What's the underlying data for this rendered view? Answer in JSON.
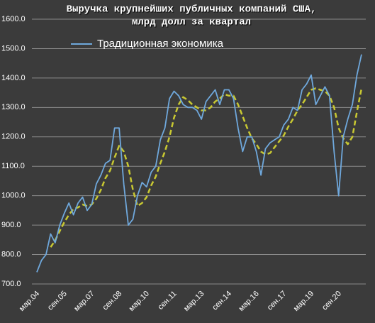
{
  "chart_data": {
    "type": "line",
    "title": [
      "Выручка крупнейших публичных компаний США,",
      "млрд долл за квартал"
    ],
    "categories": [
      "мар.04",
      null,
      null,
      null,
      null,
      null,
      "сен.05",
      null,
      null,
      null,
      null,
      null,
      "мар.07",
      null,
      null,
      null,
      null,
      null,
      "сен.08",
      null,
      null,
      null,
      null,
      null,
      "мар.10",
      null,
      null,
      null,
      null,
      null,
      "сен.11",
      null,
      null,
      null,
      null,
      null,
      "мар.13",
      null,
      null,
      null,
      null,
      null,
      "сен.14",
      null,
      null,
      null,
      null,
      null,
      "мар.16",
      null,
      null,
      null,
      null,
      null,
      "сен.17",
      null,
      null,
      null,
      null,
      null,
      "мар.19",
      null,
      null,
      null,
      null,
      null,
      "сен.20",
      null,
      null,
      null,
      null,
      null
    ],
    "series": [
      {
        "name": "Традиционная экономика",
        "color": "#6fa8dc",
        "dashed": false,
        "values": [
          740,
          780,
          800,
          870,
          840,
          900,
          940,
          975,
          935,
          975,
          995,
          950,
          970,
          1040,
          1070,
          1110,
          1120,
          1230,
          1230,
          1040,
          900,
          920,
          1000,
          1045,
          1030,
          1080,
          1100,
          1190,
          1230,
          1330,
          1355,
          1340,
          1310,
          1300,
          1300,
          1290,
          1260,
          1320,
          1340,
          1360,
          1310,
          1360,
          1360,
          1330,
          1230,
          1150,
          1200,
          1200,
          1150,
          1070,
          1160,
          1180,
          1190,
          1200,
          1240,
          1260,
          1300,
          1290,
          1360,
          1380,
          1410,
          1310,
          1340,
          1370,
          1340,
          1150,
          1000,
          1200,
          1260,
          1310,
          1410,
          1480
        ]
      },
      {
        "color": "#c8c832",
        "dashed": true,
        "values": [
          null,
          null,
          null,
          825,
          848,
          880,
          910,
          935,
          955,
          960,
          970,
          965,
          970,
          990,
          1020,
          1060,
          1085,
          1130,
          1170,
          1150,
          1100,
          1020,
          965,
          975,
          995,
          1035,
          1065,
          1110,
          1150,
          1200,
          1265,
          1310,
          1335,
          1325,
          1310,
          1300,
          1290,
          1290,
          1300,
          1320,
          1330,
          1345,
          1340,
          1340,
          1310,
          1270,
          1230,
          1195,
          1175,
          1150,
          1140,
          1145,
          1165,
          1185,
          1205,
          1235,
          1260,
          1290,
          1310,
          1335,
          1360,
          1365,
          1360,
          1355,
          1340,
          1300,
          1230,
          1195,
          1175,
          1200,
          1285,
          1365
        ]
      }
    ],
    "ylim": [
      700,
      1600
    ],
    "yticks": [
      {
        "value": 700,
        "label": "700.0"
      },
      {
        "value": 800,
        "label": "800.0"
      },
      {
        "value": 900,
        "label": "900.0"
      },
      {
        "value": 1000,
        "label": "1000.0"
      },
      {
        "value": 1100,
        "label": "1100.0"
      },
      {
        "value": 1200,
        "label": "1200.0"
      },
      {
        "value": 1300,
        "label": "1300.0"
      },
      {
        "value": 1400,
        "label": "1400.0"
      },
      {
        "value": 1500,
        "label": "1500.0"
      },
      {
        "value": 1600,
        "label": "1600.0"
      }
    ],
    "grid": true,
    "legend": "upper left"
  }
}
